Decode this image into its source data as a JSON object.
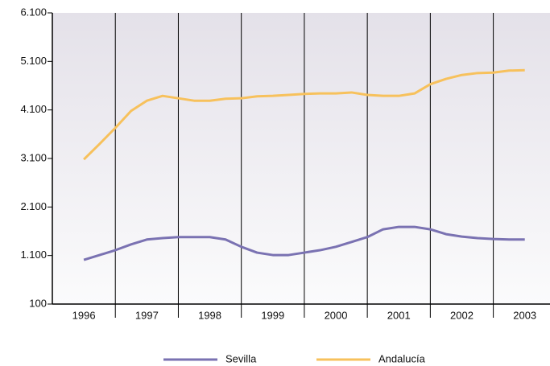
{
  "chart_data": {
    "type": "line",
    "x": [
      1996,
      1996.25,
      1996.5,
      1996.75,
      1997,
      1997.25,
      1997.5,
      1997.75,
      1998,
      1998.25,
      1998.5,
      1998.75,
      1999,
      1999.25,
      1999.5,
      1999.75,
      2000,
      2000.25,
      2000.5,
      2000.75,
      2001,
      2001.25,
      2001.5,
      2001.75,
      2002,
      2002.25,
      2002.5,
      2002.75,
      2003
    ],
    "series": [
      {
        "name": "Sevilla",
        "color": "#7a72b2",
        "values": [
          1010,
          1110,
          1210,
          1330,
          1430,
          1460,
          1480,
          1480,
          1480,
          1430,
          1280,
          1160,
          1110,
          1110,
          1160,
          1210,
          1280,
          1380,
          1480,
          1640,
          1690,
          1690,
          1640,
          1540,
          1490,
          1460,
          1440,
          1430,
          1430
        ]
      },
      {
        "name": "Andalucía",
        "color": "#f7c15c",
        "values": [
          3080,
          3400,
          3730,
          4080,
          4290,
          4390,
          4340,
          4290,
          4290,
          4330,
          4340,
          4380,
          4390,
          4410,
          4430,
          4440,
          4440,
          4460,
          4410,
          4390,
          4390,
          4440,
          4630,
          4740,
          4820,
          4860,
          4870,
          4910,
          4920
        ]
      }
    ],
    "xlim": [
      1995.5,
      2003.4
    ],
    "xticks": [
      1996,
      1997,
      1998,
      1999,
      2000,
      2001,
      2002,
      2003
    ],
    "ylim": [
      100,
      6100
    ],
    "yticks": [
      {
        "value": 100,
        "label": "100"
      },
      {
        "value": 1100,
        "label": "1.100"
      },
      {
        "value": 2100,
        "label": "2.100"
      },
      {
        "value": 3100,
        "label": "3.100"
      },
      {
        "value": 4100,
        "label": "4.100"
      },
      {
        "value": 5100,
        "label": "5.100"
      },
      {
        "value": 6100,
        "label": "6.100"
      }
    ],
    "legend": "bottom"
  }
}
